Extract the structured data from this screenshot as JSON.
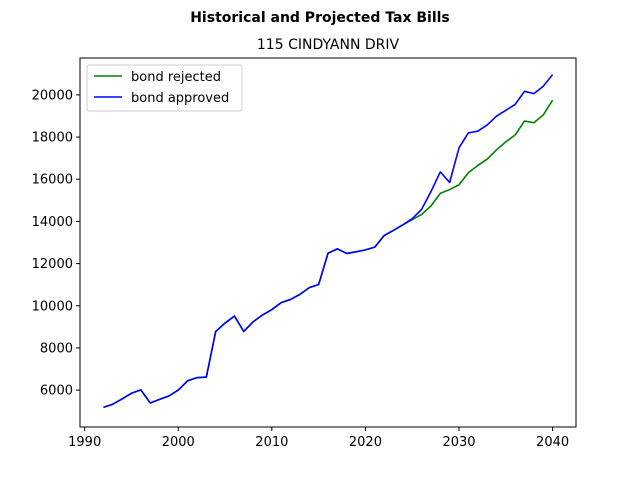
{
  "chart_data": {
    "type": "line",
    "title": "Historical and Projected Tax Bills",
    "subtitle": "115 CINDYANN DRIV",
    "xlabel": "",
    "ylabel": "",
    "xlim": [
      1989.5,
      2042.5
    ],
    "ylim": [
      4250,
      21750
    ],
    "xticks": [
      1990,
      2000,
      2010,
      2020,
      2030,
      2040
    ],
    "yticks": [
      6000,
      8000,
      10000,
      12000,
      14000,
      16000,
      18000,
      20000
    ],
    "grid": false,
    "legend_position": "top-left",
    "series": [
      {
        "name": "bond rejected",
        "color": "#008000",
        "x": [
          1992,
          1993,
          1994,
          1995,
          1996,
          1997,
          1998,
          1999,
          2000,
          2001,
          2002,
          2003,
          2004,
          2005,
          2006,
          2007,
          2008,
          2009,
          2010,
          2011,
          2012,
          2013,
          2014,
          2015,
          2016,
          2017,
          2018,
          2019,
          2020,
          2021,
          2022,
          2023,
          2024,
          2025,
          2026,
          2027,
          2028,
          2029,
          2030,
          2031,
          2032,
          2033,
          2034,
          2035,
          2036,
          2037,
          2038,
          2039,
          2040
        ],
        "values": [
          5180,
          5330,
          5580,
          5850,
          6010,
          5390,
          5560,
          5720,
          6000,
          6440,
          6590,
          6620,
          8780,
          9180,
          9510,
          8780,
          9240,
          9560,
          9820,
          10150,
          10300,
          10540,
          10860,
          11010,
          12490,
          12700,
          12480,
          12560,
          12650,
          12780,
          13330,
          13580,
          13840,
          14080,
          14330,
          14730,
          15330,
          15510,
          15740,
          16310,
          16650,
          16950,
          17390,
          17770,
          18100,
          18760,
          18680,
          19050,
          19750
        ]
      },
      {
        "name": "bond approved",
        "color": "#0000ff",
        "x": [
          1992,
          1993,
          1994,
          1995,
          1996,
          1997,
          1998,
          1999,
          2000,
          2001,
          2002,
          2003,
          2004,
          2005,
          2006,
          2007,
          2008,
          2009,
          2010,
          2011,
          2012,
          2013,
          2014,
          2015,
          2016,
          2017,
          2018,
          2019,
          2020,
          2021,
          2022,
          2023,
          2024,
          2025,
          2026,
          2027,
          2028,
          2029,
          2030,
          2031,
          2032,
          2033,
          2034,
          2035,
          2036,
          2037,
          2038,
          2039,
          2040
        ],
        "values": [
          5180,
          5330,
          5580,
          5850,
          6010,
          5390,
          5560,
          5720,
          6000,
          6440,
          6590,
          6620,
          8780,
          9180,
          9510,
          8780,
          9240,
          9560,
          9820,
          10150,
          10300,
          10540,
          10860,
          11010,
          12490,
          12700,
          12480,
          12560,
          12650,
          12780,
          13330,
          13580,
          13840,
          14130,
          14570,
          15410,
          16350,
          15850,
          17490,
          18200,
          18280,
          18570,
          18990,
          19270,
          19550,
          20170,
          20060,
          20410,
          20960
        ]
      }
    ]
  }
}
